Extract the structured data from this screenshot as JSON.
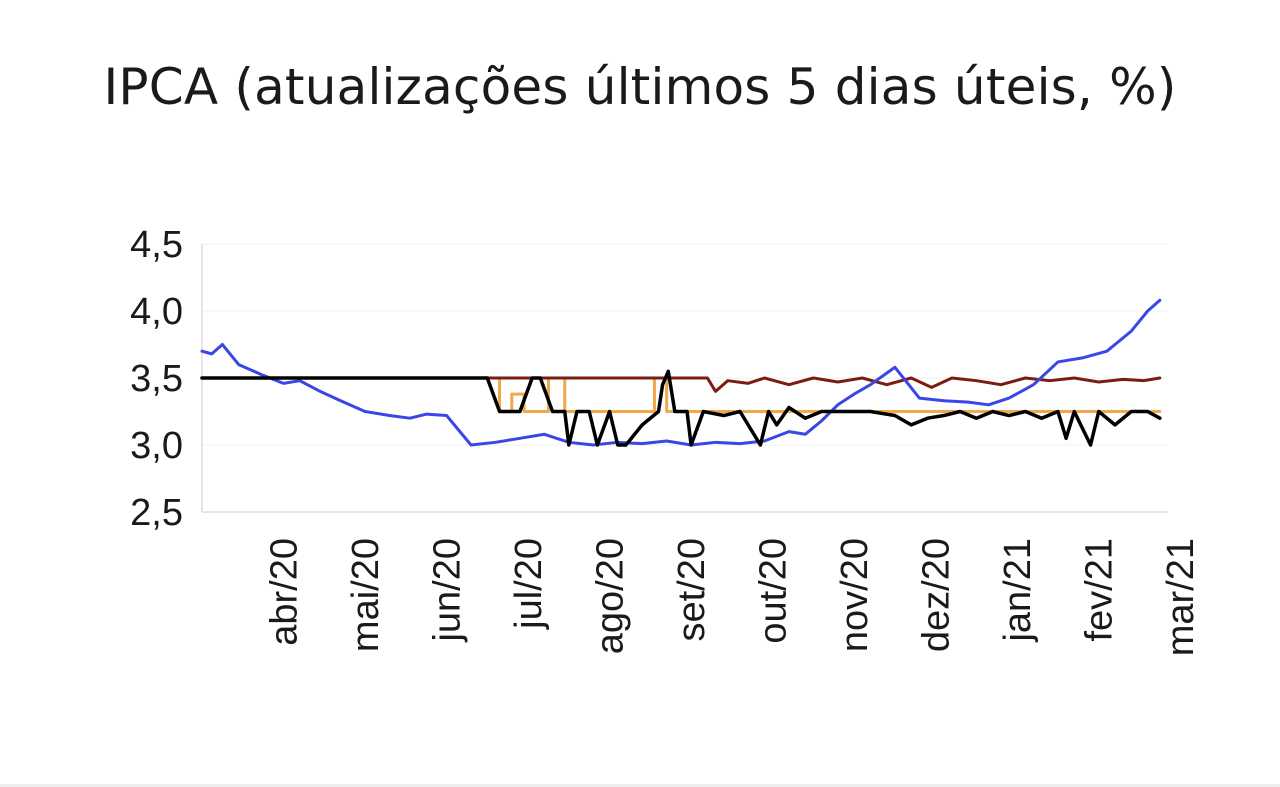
{
  "chart_data": {
    "type": "line",
    "title": "IPCA (atualizações últimos 5 dias úteis, %)",
    "xlabel": "",
    "ylabel": "",
    "x_ticks": [
      "abr/20",
      "mai/20",
      "jun/20",
      "jul/20",
      "ago/20",
      "set/20",
      "out/20",
      "nov/20",
      "dez/20",
      "jan/21",
      "fev/21",
      "mar/21"
    ],
    "y_ticks": [
      "2,5",
      "3,0",
      "3,5",
      "4,0",
      "4,5"
    ],
    "ylim": [
      2.5,
      4.5
    ],
    "xlim": [
      0,
      11.85
    ],
    "grid": true,
    "legend": "none",
    "series": [
      {
        "color": "#f0a94a",
        "style": "step",
        "x": [
          0,
          3.5,
          3.65,
          3.8,
          3.95,
          4.25,
          4.45,
          5.3,
          5.55,
          5.7,
          7.4,
          7.6,
          11.75
        ],
        "y": [
          3.5,
          3.5,
          3.25,
          3.38,
          3.25,
          3.5,
          3.25,
          3.25,
          3.5,
          3.25,
          3.25,
          3.25,
          3.25
        ]
      },
      {
        "color": "#7b1c12",
        "style": "line",
        "x": [
          0,
          4.3,
          6.2,
          6.3,
          6.45,
          6.7,
          6.9,
          7.2,
          7.5,
          7.8,
          8.1,
          8.4,
          8.7,
          8.95,
          9.2,
          9.5,
          9.8,
          10.1,
          10.4,
          10.7,
          11.0,
          11.3,
          11.55,
          11.75
        ],
        "y": [
          3.5,
          3.5,
          3.5,
          3.4,
          3.48,
          3.46,
          3.5,
          3.45,
          3.5,
          3.47,
          3.5,
          3.45,
          3.5,
          3.43,
          3.5,
          3.48,
          3.45,
          3.5,
          3.48,
          3.5,
          3.47,
          3.49,
          3.48,
          3.5
        ]
      },
      {
        "color": "#3a46e6",
        "style": "line",
        "x": [
          0,
          0.12,
          0.25,
          0.45,
          0.75,
          1.0,
          1.2,
          1.45,
          1.7,
          2.0,
          2.3,
          2.55,
          2.75,
          3.0,
          3.3,
          3.6,
          3.9,
          4.2,
          4.5,
          4.8,
          5.1,
          5.4,
          5.7,
          6.0,
          6.3,
          6.6,
          6.9,
          7.2,
          7.4,
          7.6,
          7.8,
          8.0,
          8.2,
          8.5,
          8.8,
          9.1,
          9.4,
          9.65,
          9.9,
          10.2,
          10.5,
          10.8,
          11.1,
          11.4,
          11.6,
          11.75
        ],
        "y": [
          3.7,
          3.68,
          3.75,
          3.6,
          3.52,
          3.46,
          3.48,
          3.4,
          3.33,
          3.25,
          3.22,
          3.2,
          3.23,
          3.22,
          3.0,
          3.02,
          3.05,
          3.08,
          3.02,
          3.0,
          3.02,
          3.01,
          3.03,
          3.0,
          3.02,
          3.01,
          3.03,
          3.1,
          3.08,
          3.18,
          3.3,
          3.38,
          3.45,
          3.58,
          3.35,
          3.33,
          3.32,
          3.3,
          3.35,
          3.45,
          3.62,
          3.65,
          3.7,
          3.85,
          4.0,
          4.08
        ]
      },
      {
        "color": "#000000",
        "style": "line",
        "x": [
          0,
          3.5,
          3.65,
          3.9,
          4.05,
          4.15,
          4.3,
          4.45,
          4.5,
          4.6,
          4.75,
          4.85,
          5.0,
          5.1,
          5.2,
          5.4,
          5.6,
          5.65,
          5.72,
          5.8,
          5.95,
          6.0,
          6.15,
          6.4,
          6.6,
          6.85,
          6.95,
          7.05,
          7.2,
          7.4,
          7.6,
          7.9,
          8.2,
          8.5,
          8.7,
          8.9,
          9.1,
          9.3,
          9.5,
          9.7,
          9.9,
          10.1,
          10.3,
          10.5,
          10.6,
          10.7,
          10.9,
          11.0,
          11.2,
          11.4,
          11.6,
          11.75
        ],
        "y": [
          3.5,
          3.5,
          3.25,
          3.25,
          3.5,
          3.5,
          3.25,
          3.25,
          3.0,
          3.25,
          3.25,
          3.0,
          3.25,
          3.0,
          3.0,
          3.15,
          3.25,
          3.45,
          3.55,
          3.25,
          3.25,
          3.0,
          3.25,
          3.22,
          3.25,
          3.0,
          3.25,
          3.15,
          3.28,
          3.2,
          3.25,
          3.25,
          3.25,
          3.22,
          3.15,
          3.2,
          3.22,
          3.25,
          3.2,
          3.25,
          3.22,
          3.25,
          3.2,
          3.25,
          3.05,
          3.25,
          3.0,
          3.25,
          3.15,
          3.25,
          3.25,
          3.2
        ]
      }
    ]
  }
}
